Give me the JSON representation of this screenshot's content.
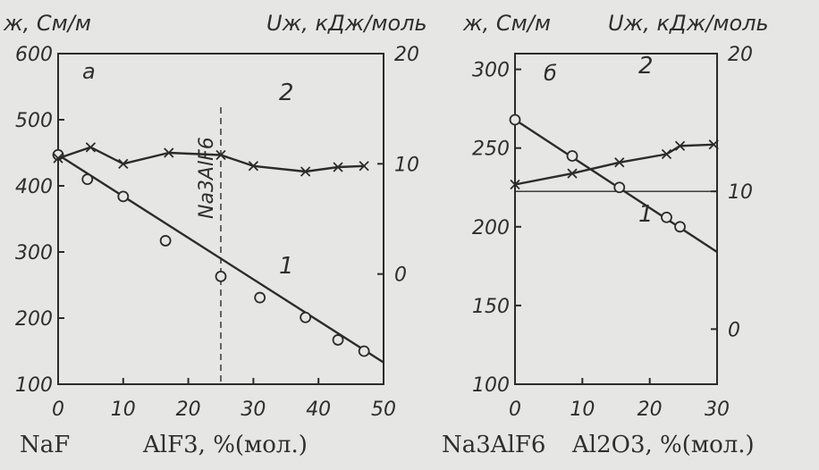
{
  "chart_data": [
    {
      "type": "line",
      "panel_label": "а",
      "ylabel_left": "ж, См/м",
      "ylabel_right": "Uж, кДж/моль",
      "xlabel_left": "NaF",
      "xlabel_right": "AlF3, %(мол.)",
      "xlim": [
        0,
        50
      ],
      "xticks": [
        "0",
        "10",
        "20",
        "30",
        "40",
        "50"
      ],
      "ylim_left": [
        100,
        600
      ],
      "yticks_left": [
        "100",
        "200",
        "300",
        "400",
        "500",
        "600"
      ],
      "ylim_right": [
        -10,
        20
      ],
      "yticks_right": [
        "0",
        "10",
        "20"
      ],
      "vline": {
        "x": 25,
        "label": "Na3AlF6"
      },
      "series": [
        {
          "name": "1",
          "axis": "left",
          "marker": "circle",
          "x": [
            0,
            4.5,
            10,
            16.5,
            25,
            31,
            38,
            43,
            47
          ],
          "y": [
            447,
            410,
            384,
            317,
            263,
            231,
            201,
            167,
            150
          ],
          "line": {
            "x": [
              0,
              50
            ],
            "y": [
              447,
              133
            ]
          }
        },
        {
          "name": "2",
          "axis": "right",
          "marker": "x",
          "x": [
            0,
            5,
            10,
            17,
            25,
            30,
            38,
            43,
            47
          ],
          "y": [
            10.5,
            11.5,
            10,
            11,
            10.8,
            9.8,
            9.3,
            9.7,
            9.8
          ]
        }
      ]
    },
    {
      "type": "line",
      "panel_label": "б",
      "ylabel_left": "ж, См/м",
      "ylabel_right": "Uж, кДж/моль",
      "xlabel_left": "Na3AlF6",
      "xlabel_right": "Al2O3, %(мол.)",
      "xlim": [
        0,
        30
      ],
      "xticks": [
        "0",
        "10",
        "20",
        "30"
      ],
      "ylim_left": [
        100,
        310
      ],
      "yticks_left": [
        "100",
        "150",
        "200",
        "250",
        "300"
      ],
      "ylim_right": [
        -4,
        20
      ],
      "yticks_right": [
        "0",
        "10",
        "20"
      ],
      "hline_right": 10,
      "series": [
        {
          "name": "1",
          "axis": "left",
          "marker": "circle",
          "x": [
            0,
            8.5,
            15.5,
            22.5,
            24.5
          ],
          "y": [
            268,
            245,
            225,
            206,
            200
          ],
          "line": {
            "x": [
              0,
              30
            ],
            "y": [
              268,
              184
            ]
          }
        },
        {
          "name": "2",
          "axis": "right",
          "marker": "x",
          "x": [
            0,
            8.5,
            15.5,
            22.5,
            24.5,
            29.5
          ],
          "y": [
            10.5,
            11.3,
            12.1,
            12.7,
            13.3,
            13.4
          ]
        }
      ]
    }
  ]
}
